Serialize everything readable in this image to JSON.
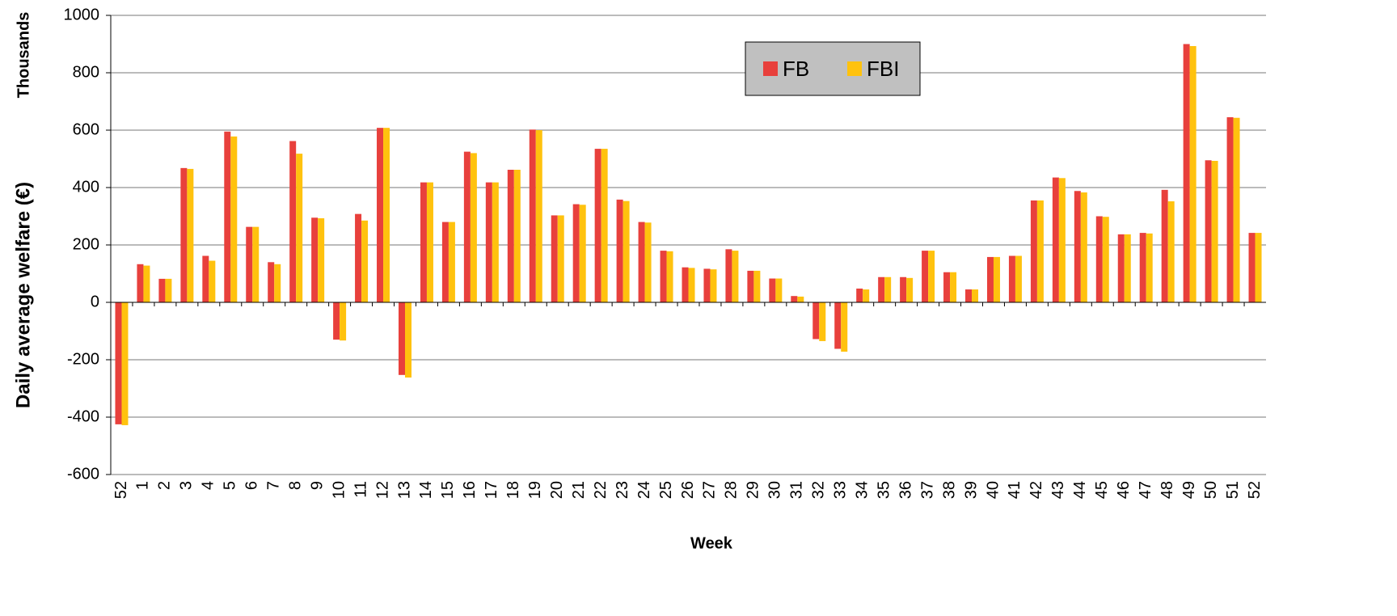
{
  "chart_data": {
    "type": "bar",
    "x_label": "Week",
    "y_label": "Daily average welfare (€)",
    "y_unit_label": "Thousands",
    "categories": [
      "52",
      "1",
      "2",
      "3",
      "4",
      "5",
      "6",
      "7",
      "8",
      "9",
      "10",
      "11",
      "12",
      "13",
      "14",
      "15",
      "16",
      "17",
      "18",
      "19",
      "20",
      "21",
      "22",
      "23",
      "24",
      "25",
      "26",
      "27",
      "28",
      "29",
      "30",
      "31",
      "32",
      "33",
      "34",
      "35",
      "36",
      "37",
      "38",
      "39",
      "40",
      "41",
      "42",
      "43",
      "44",
      "45",
      "46",
      "47",
      "48",
      "49",
      "50",
      "51",
      "52"
    ],
    "series": [
      {
        "name": "FB",
        "color": "#e8403c",
        "values": [
          -425,
          133,
          82,
          468,
          162,
          595,
          263,
          140,
          562,
          295,
          -130,
          308,
          608,
          -253,
          418,
          280,
          525,
          418,
          462,
          602,
          303,
          342,
          535,
          358,
          280,
          180,
          122,
          117,
          185,
          110,
          83,
          22,
          -128,
          -162,
          48,
          88,
          88,
          180,
          105,
          45,
          158,
          162,
          355,
          435,
          388,
          300,
          237,
          242,
          392,
          900,
          495,
          645,
          242
        ]
      },
      {
        "name": "FBI",
        "color": "#ffc20e",
        "values": [
          -428,
          128,
          82,
          465,
          145,
          578,
          263,
          133,
          518,
          293,
          -133,
          285,
          608,
          -262,
          418,
          280,
          520,
          418,
          462,
          600,
          303,
          340,
          535,
          353,
          278,
          178,
          120,
          115,
          180,
          110,
          83,
          20,
          -135,
          -172,
          45,
          88,
          85,
          180,
          105,
          45,
          158,
          162,
          355,
          433,
          383,
          298,
          237,
          240,
          352,
          893,
          493,
          643,
          242
        ]
      }
    ],
    "ylim": [
      -600,
      1000
    ],
    "yticks": [
      -600,
      -400,
      -200,
      0,
      200,
      400,
      600,
      800,
      1000
    ],
    "grid": true,
    "legend_position": "upper center"
  }
}
